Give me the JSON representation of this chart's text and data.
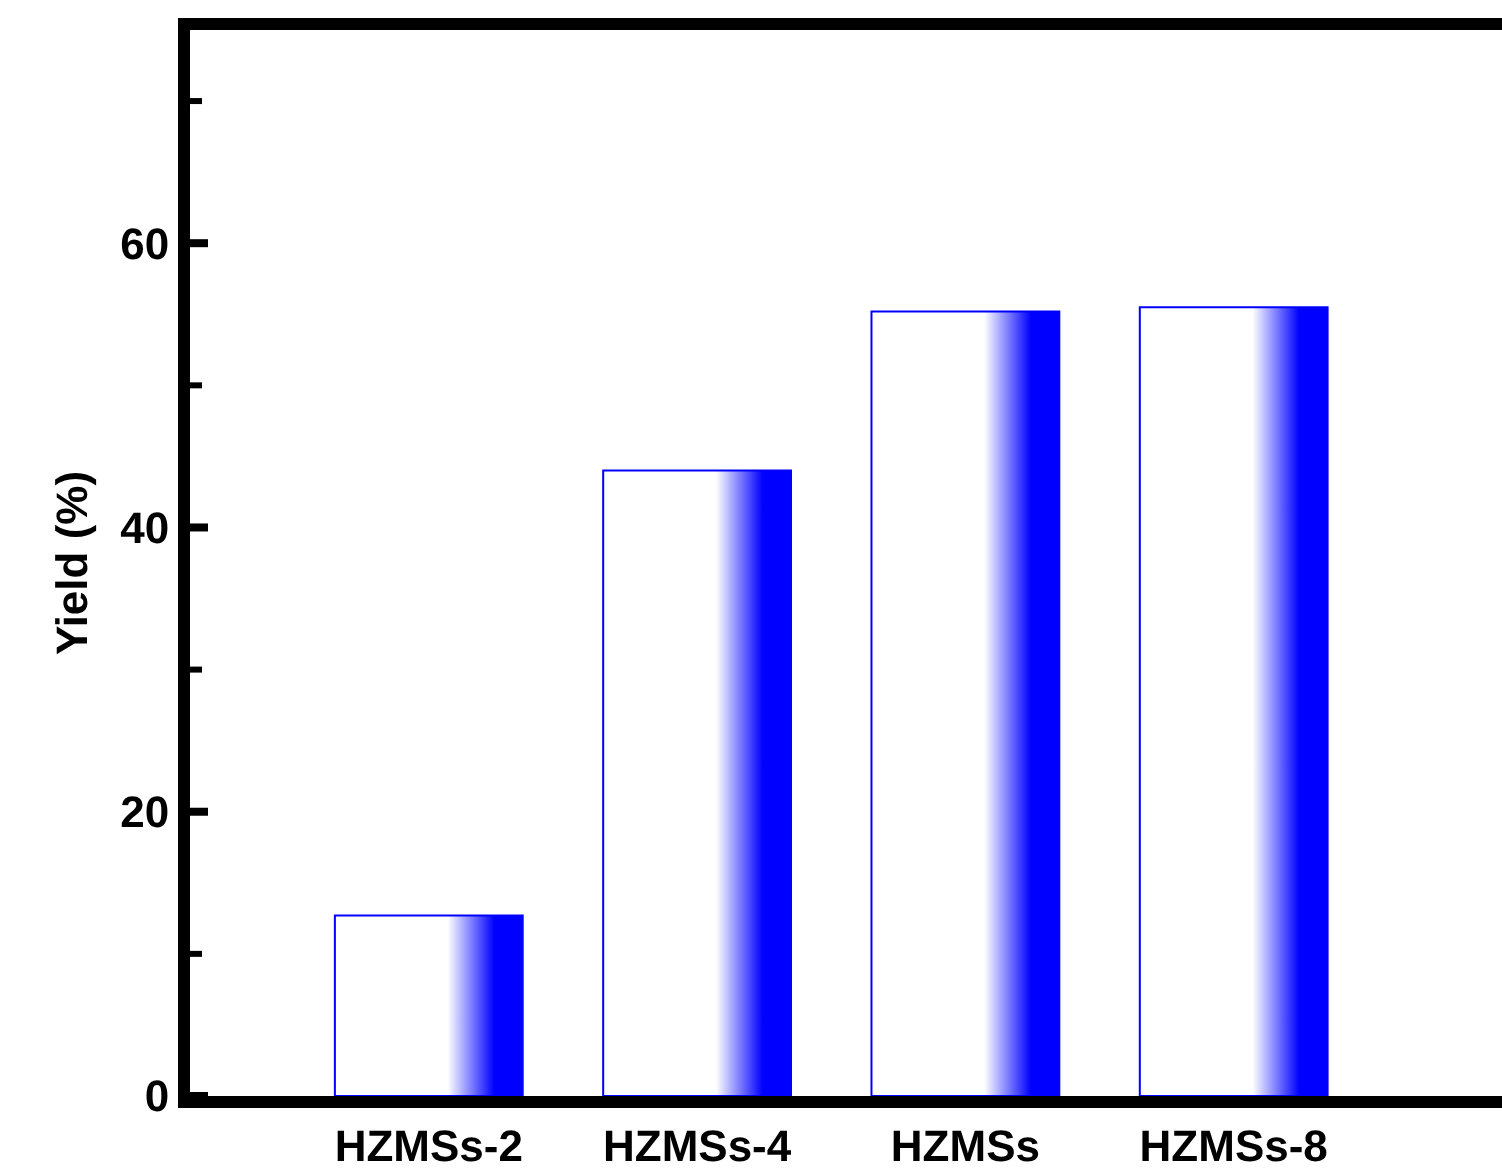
{
  "chart_data": {
    "type": "bar",
    "ylabel": "Yield (%)",
    "categories": [
      "HZMSs-2",
      "HZMSs-4",
      "HZMSs",
      "HZMSs-8"
    ],
    "values": [
      12.7,
      44.0,
      55.2,
      55.5
    ],
    "color": "#0000ff",
    "ylim": [
      0,
      75
    ],
    "yticks": [
      0,
      {
        "value": 10,
        "label": null
      },
      20,
      {
        "value": 30,
        "label": null
      },
      40,
      {
        "value": 50,
        "label": null
      },
      60,
      {
        "value": 70,
        "label": null
      }
    ],
    "grid": false
  }
}
